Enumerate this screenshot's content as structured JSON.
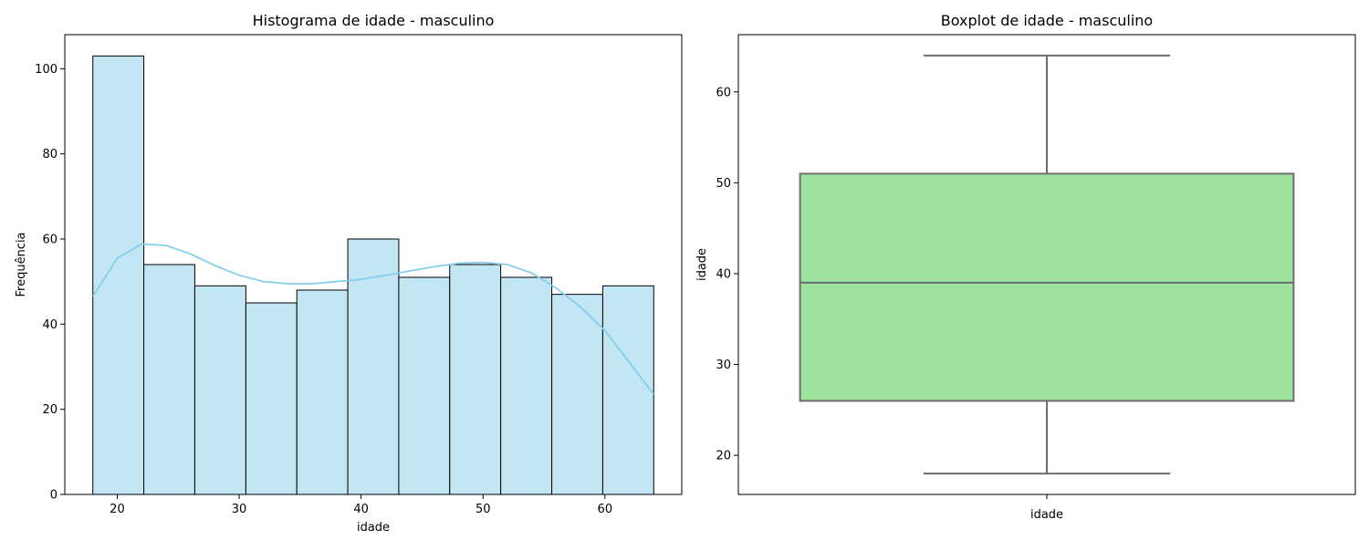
{
  "chart_data": [
    {
      "type": "histogram",
      "title": "Histograma de idade - masculino",
      "xlabel": "idade",
      "ylabel": "Frequência",
      "xlim": [
        15.7,
        66.3
      ],
      "ylim": [
        0,
        108
      ],
      "xticks": [
        20,
        30,
        40,
        50,
        60
      ],
      "yticks": [
        0,
        20,
        40,
        60,
        80,
        100
      ],
      "bin_edges": [
        18,
        22.18,
        26.36,
        30.55,
        34.73,
        38.91,
        43.09,
        47.27,
        51.45,
        55.64,
        59.82,
        64
      ],
      "counts": [
        103,
        54,
        49,
        45,
        48,
        60,
        51,
        54,
        51,
        47,
        49
      ],
      "bar_color": "#c2e6f4",
      "edge_color": "#000000",
      "kde": {
        "color": "#87ceeb",
        "x": [
          18,
          20,
          22,
          24,
          26,
          28,
          30,
          32,
          34,
          36,
          38,
          40,
          42,
          44,
          46,
          48,
          50,
          52,
          54,
          56,
          58,
          60,
          62,
          64
        ],
        "y": [
          46.5,
          55.5,
          58.8,
          58.5,
          56.5,
          53.8,
          51.5,
          50.0,
          49.5,
          49.5,
          50.0,
          50.5,
          51.5,
          52.5,
          53.5,
          54.3,
          54.5,
          54.0,
          52.0,
          48.5,
          44.0,
          38.5,
          31.0,
          23.5
        ]
      }
    },
    {
      "type": "boxplot",
      "title": "Boxplot de idade - masculino",
      "xlabel": "idade",
      "ylabel": "idade",
      "categories": [
        "idade"
      ],
      "ylim": [
        15.7,
        66.3
      ],
      "yticks": [
        20,
        30,
        40,
        50,
        60
      ],
      "stats": {
        "min": 18,
        "q1": 26,
        "median": 39,
        "q3": 51,
        "max": 64
      },
      "box_color": "#9de39d",
      "line_color": "#6e6e6e"
    }
  ]
}
